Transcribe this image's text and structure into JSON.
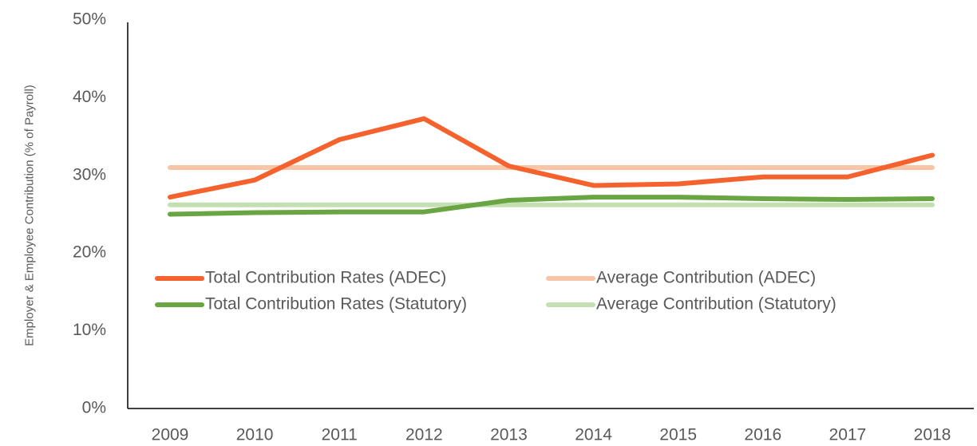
{
  "chart_data": {
    "type": "line",
    "y_label": "Employer & Employee Contribution (% of Payroll)",
    "categories": [
      "2009",
      "2010",
      "2011",
      "2012",
      "2013",
      "2014",
      "2015",
      "2016",
      "2017",
      "2018"
    ],
    "series": [
      {
        "name": "Total Contribution Rates (ADEC)",
        "color": "#f5622d",
        "values": [
          27.2,
          29.4,
          34.6,
          37.3,
          31.2,
          28.7,
          28.9,
          29.8,
          29.8,
          32.6
        ]
      },
      {
        "name": "Average Contribution (ADEC)",
        "color": "#f8c6a6",
        "values": [
          31.0,
          31.0,
          31.0,
          31.0,
          31.0,
          31.0,
          31.0,
          31.0,
          31.0,
          31.0
        ]
      },
      {
        "name": "Total Contribution Rates (Statutory)",
        "color": "#6aa544",
        "values": [
          25.0,
          25.2,
          25.3,
          25.3,
          26.8,
          27.2,
          27.2,
          27.0,
          26.9,
          27.0
        ]
      },
      {
        "name": "Average Contribution (Statutory)",
        "color": "#c4e0b2",
        "values": [
          26.2,
          26.2,
          26.2,
          26.2,
          26.2,
          26.2,
          26.2,
          26.2,
          26.2,
          26.2
        ]
      }
    ],
    "ylim": [
      0,
      50
    ],
    "yticks": [
      {
        "value": 0,
        "label": "0%"
      },
      {
        "value": 10,
        "label": "10%"
      },
      {
        "value": 20,
        "label": "20%"
      },
      {
        "value": 30,
        "label": "30%"
      },
      {
        "value": 40,
        "label": "40%"
      },
      {
        "value": 50,
        "label": "50%"
      }
    ],
    "legend": "center"
  }
}
